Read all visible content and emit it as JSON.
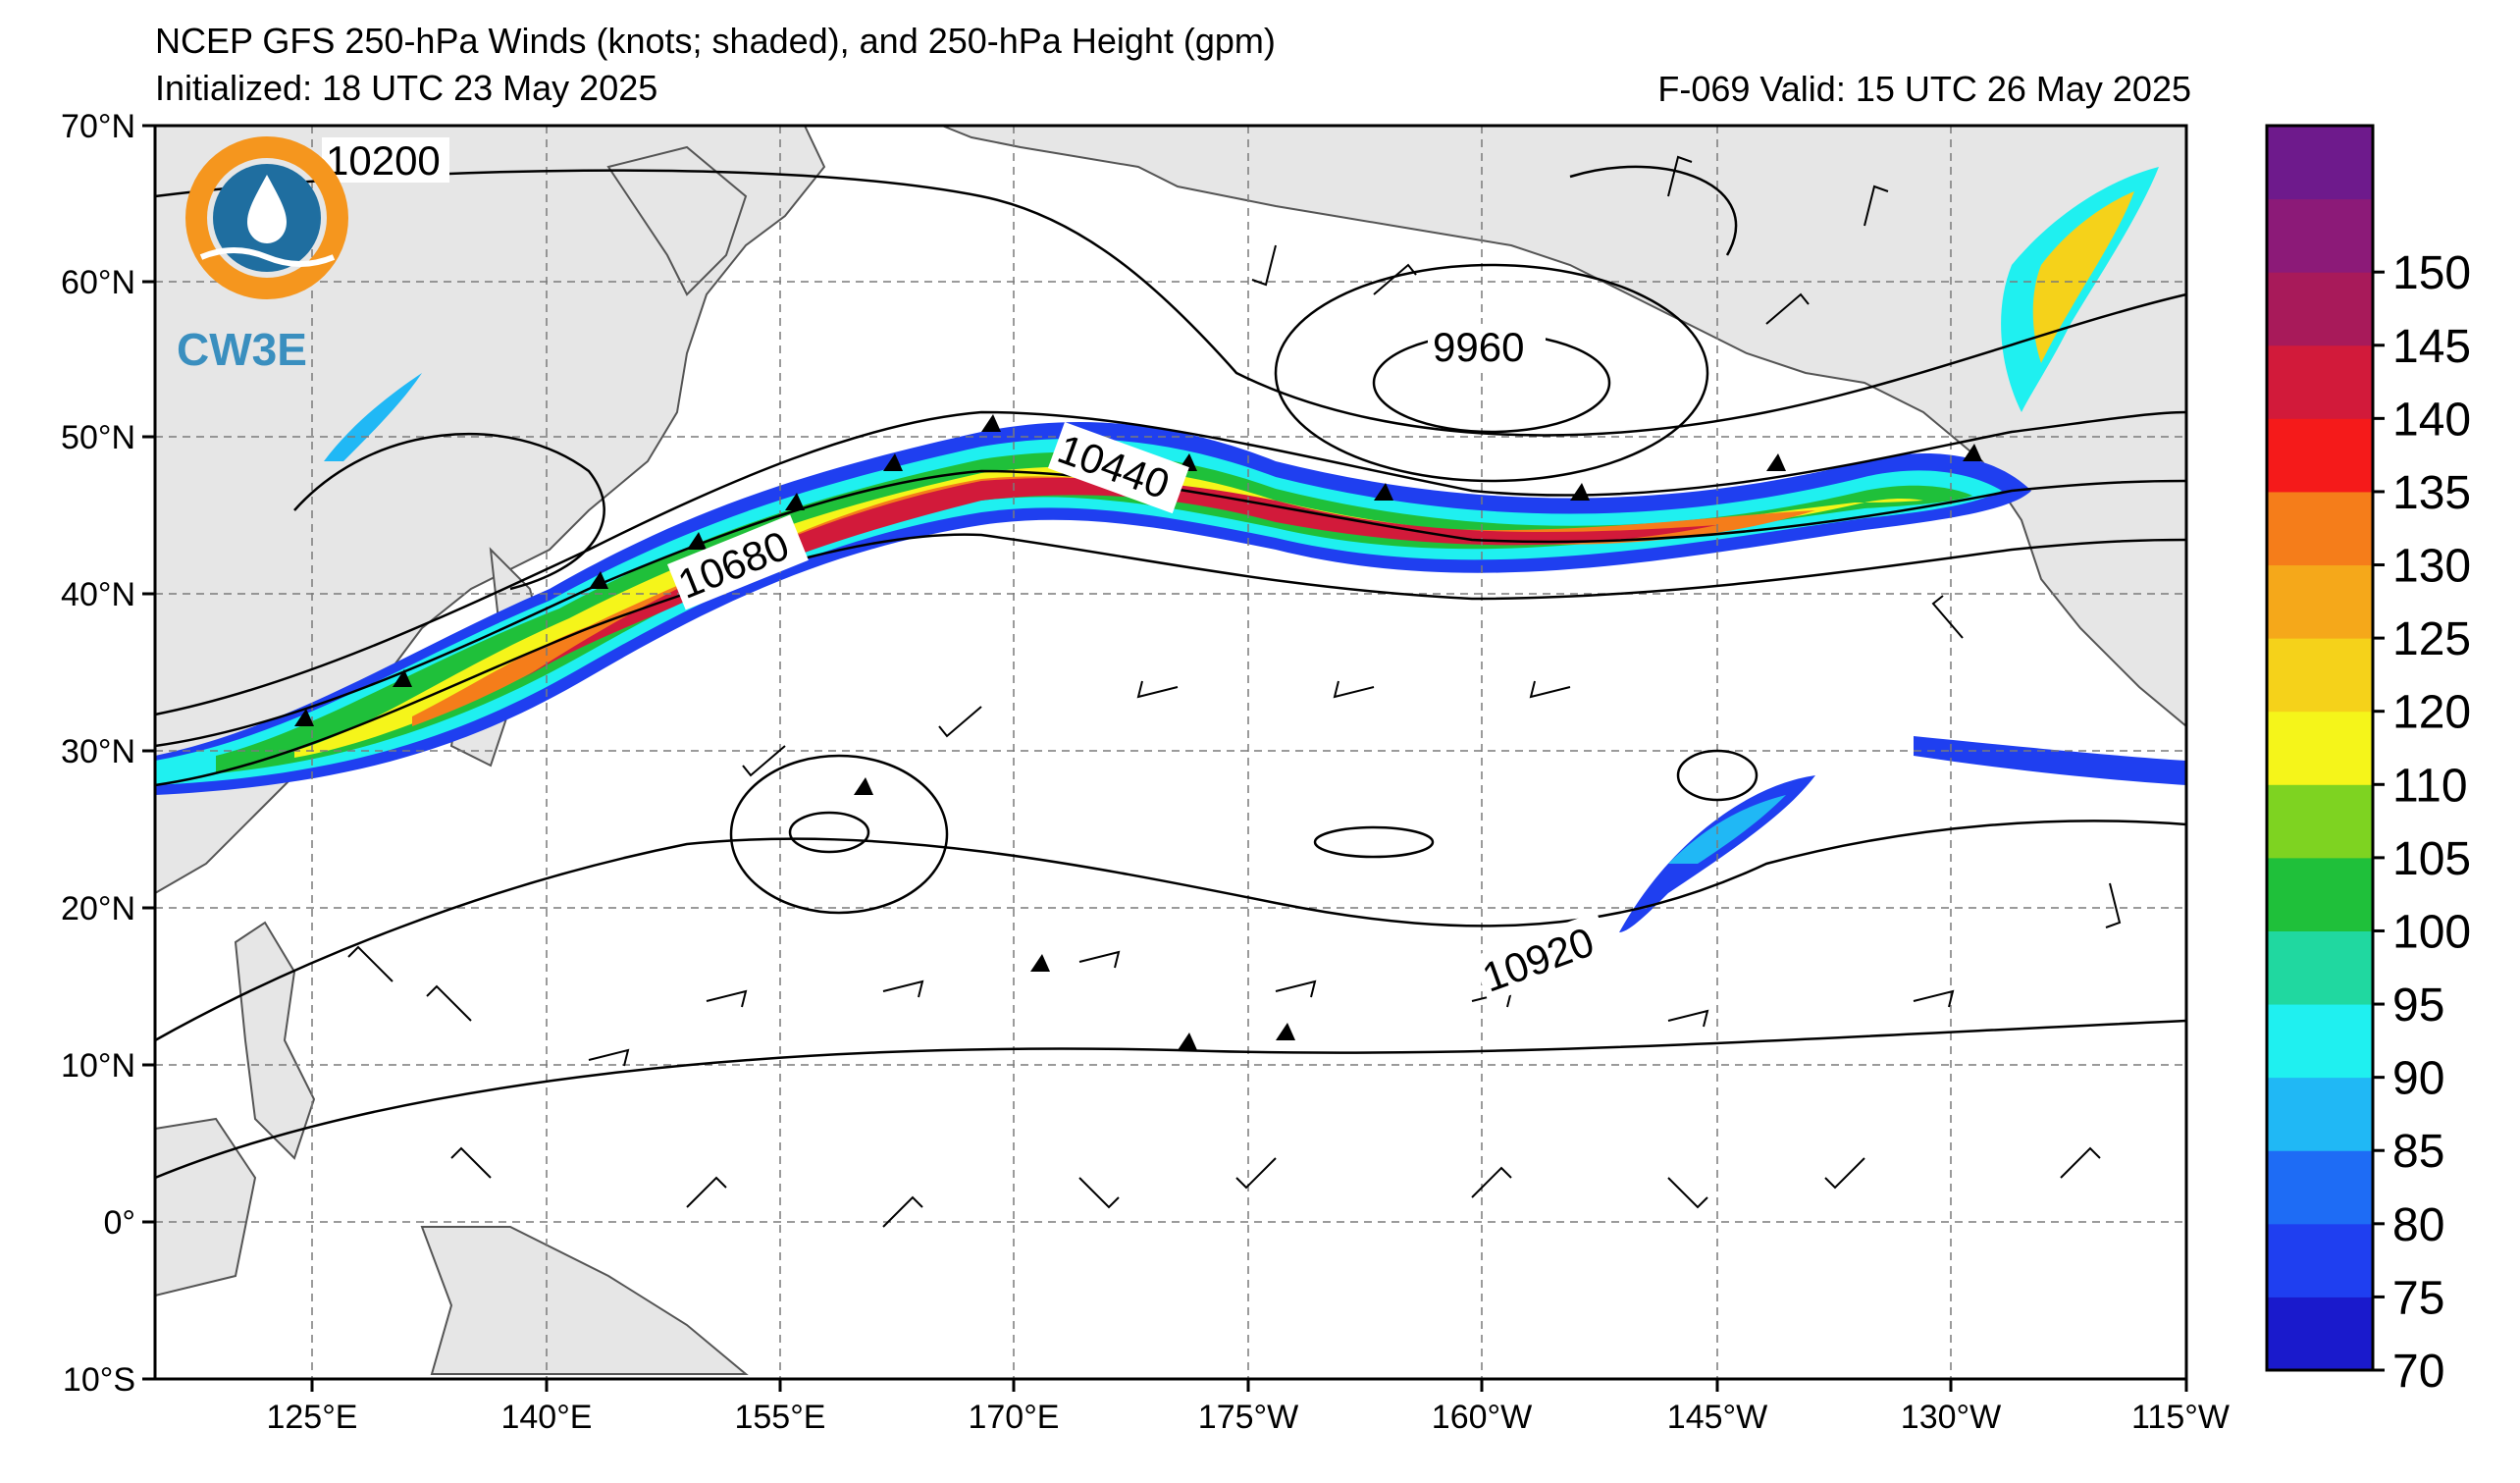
{
  "title": {
    "line1": "NCEP GFS 250-hPa Winds (knots; shaded), and 250-hPa Height (gpm)",
    "line2": "Initialized: 18 UTC 23 May 2025",
    "valid": "F-069  Valid: 15 UTC 26 May 2025"
  },
  "logo": {
    "text": "CW3E"
  },
  "map": {
    "lon_labels": [
      "125°E",
      "140°E",
      "155°E",
      "170°E",
      "175°W",
      "160°W",
      "145°W",
      "130°W",
      "115°W"
    ],
    "lat_labels": [
      "70°N",
      "60°N",
      "50°N",
      "40°N",
      "30°N",
      "20°N",
      "10°N",
      "0°",
      "10°S"
    ],
    "contour_labels": [
      "10200",
      "9960",
      "10440",
      "10680",
      "10920"
    ]
  },
  "colorbar": {
    "labels": [
      "70",
      "75",
      "80",
      "85",
      "90",
      "95",
      "100",
      "105",
      "110",
      "120",
      "125",
      "130",
      "135",
      "140",
      "145",
      "150"
    ],
    "colors": [
      "#1a1acc",
      "#1f3ff0",
      "#1e6cf5",
      "#20b8f5",
      "#1ff0f0",
      "#20d8a0",
      "#1fc03a",
      "#7ed321",
      "#f5f51a",
      "#f5d21a",
      "#f5a81a",
      "#f57d1a",
      "#f51a1a",
      "#d21a3a",
      "#a81a5a",
      "#8c1a78",
      "#6e1a8c"
    ]
  }
}
